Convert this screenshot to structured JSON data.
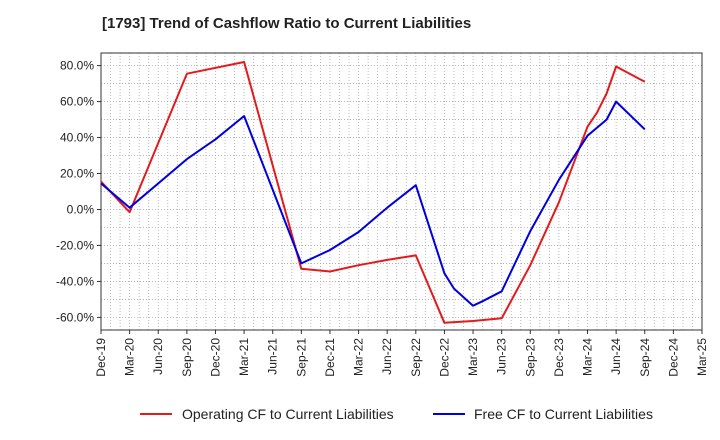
{
  "chart_data": {
    "type": "line",
    "title": "[1793]  Trend of Cashflow Ratio to Current Liabilities",
    "xlabel": "",
    "ylabel": "",
    "x_ticks": [
      "Dec-19",
      "Mar-20",
      "Jun-20",
      "Sep-20",
      "Dec-20",
      "Mar-21",
      "Jun-21",
      "Sep-21",
      "Dec-21",
      "Mar-22",
      "Jun-22",
      "Sep-22",
      "Dec-22",
      "Mar-23",
      "Jun-23",
      "Sep-23",
      "Dec-23",
      "Mar-24",
      "Jun-24",
      "Sep-24",
      "Dec-24",
      "Mar-25"
    ],
    "y_ticks": [
      80,
      60,
      40,
      20,
      0,
      -20,
      -40,
      -60
    ],
    "y_tick_labels": [
      "80.0%",
      "60.0%",
      "40.0%",
      "20.0%",
      "0.0%",
      "-20.0%",
      "-40.0%",
      "-60.0%"
    ],
    "ylim": [
      -67,
      87
    ],
    "grid": true,
    "legend_position": "bottom",
    "series": [
      {
        "name": "Operating CF to Current Liabilities",
        "color": "#e41a1c",
        "points": [
          [
            "Dec-19",
            15.5
          ],
          [
            "Mar-20",
            -1.5
          ],
          [
            "Sep-20",
            75.5
          ],
          [
            "Mar-21",
            82.0
          ],
          [
            "Sep-21",
            -33.0
          ],
          [
            "Dec-21",
            -34.5
          ],
          [
            "Mar-22",
            -31.0
          ],
          [
            "Jun-22",
            -28.0
          ],
          [
            "Sep-22",
            -25.5
          ],
          [
            "Dec-22",
            -63.0
          ],
          [
            "Mar-23",
            -62.0
          ],
          [
            "Jun-23",
            -60.5
          ],
          [
            "Sep-23",
            -31.0
          ],
          [
            "Dec-23",
            4.0
          ],
          [
            "Mar-24",
            46.0
          ],
          [
            "Apr-24",
            54.0
          ],
          [
            "May-24",
            64.5
          ],
          [
            "Jun-24",
            79.5
          ],
          [
            "Sep-24",
            71.0
          ]
        ]
      },
      {
        "name": "Free CF to Current Liabilities",
        "color": "#0000e0",
        "points": [
          [
            "Dec-19",
            14.5
          ],
          [
            "Mar-20",
            1.0
          ],
          [
            "Sep-20",
            28.0
          ],
          [
            "Dec-20",
            39.0
          ],
          [
            "Mar-21",
            52.0
          ],
          [
            "Sep-21",
            -30.0
          ],
          [
            "Dec-21",
            -22.5
          ],
          [
            "Mar-22",
            -12.5
          ],
          [
            "Jun-22",
            1.0
          ],
          [
            "Sep-22",
            13.5
          ],
          [
            "Dec-22",
            -35.5
          ],
          [
            "Jan-23",
            -44.0
          ],
          [
            "Mar-23",
            -53.5
          ],
          [
            "Apr-23",
            -51.0
          ],
          [
            "Jun-23",
            -45.5
          ],
          [
            "Sep-23",
            -12.0
          ],
          [
            "Dec-23",
            16.5
          ],
          [
            "Mar-24",
            41.0
          ],
          [
            "May-24",
            50.0
          ],
          [
            "Jun-24",
            60.0
          ],
          [
            "Sep-24",
            44.5
          ]
        ]
      }
    ]
  }
}
